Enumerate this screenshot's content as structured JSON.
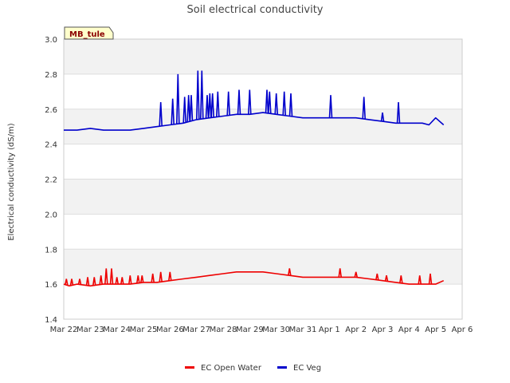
{
  "chart_data": {
    "type": "line",
    "title": "Soil electrical conductivity",
    "ylabel": "Electrical conductivity (dS/m)",
    "xlabel": "",
    "tag_label": "MB_tule",
    "ylim": [
      1.4,
      3.0
    ],
    "yticks": [
      "1.4",
      "1.6",
      "1.8",
      "2.0",
      "2.2",
      "2.4",
      "2.6",
      "2.8",
      "3.0"
    ],
    "xlim": [
      "Mar 22",
      "Apr 6"
    ],
    "xticks": [
      "Mar 22",
      "Mar 23",
      "Mar 24",
      "Mar 25",
      "Mar 26",
      "Mar 27",
      "Mar 28",
      "Mar 29",
      "Mar 30",
      "Mar 31",
      "Apr 1",
      "Apr 2",
      "Apr 3",
      "Apr 4",
      "Apr 5",
      "Apr 6"
    ],
    "x_unit": "date (Mar 22 + days)",
    "grid": true,
    "alternating_bands": true,
    "legend_placement": "bottom-center",
    "series": [
      {
        "name": "EC Open Water",
        "color": "#ee0000",
        "x": [
          0.0,
          0.2,
          0.5,
          1.0,
          1.5,
          2.0,
          2.5,
          3.0,
          3.5,
          4.0,
          4.5,
          5.0,
          5.5,
          6.0,
          6.5,
          7.0,
          7.5,
          8.0,
          8.5,
          9.0,
          9.5,
          10.0,
          10.5,
          11.0,
          11.5,
          12.0,
          12.5,
          13.0,
          13.5,
          14.0,
          14.3
        ],
        "y": [
          1.6,
          1.59,
          1.6,
          1.59,
          1.6,
          1.6,
          1.6,
          1.61,
          1.61,
          1.62,
          1.63,
          1.64,
          1.65,
          1.66,
          1.67,
          1.67,
          1.67,
          1.66,
          1.65,
          1.64,
          1.64,
          1.64,
          1.64,
          1.64,
          1.63,
          1.62,
          1.61,
          1.6,
          1.6,
          1.6,
          1.62
        ],
        "spikes": [
          [
            0.1,
            1.63
          ],
          [
            0.3,
            1.63
          ],
          [
            0.6,
            1.63
          ],
          [
            0.9,
            1.64
          ],
          [
            1.15,
            1.64
          ],
          [
            1.4,
            1.65
          ],
          [
            1.6,
            1.69
          ],
          [
            1.8,
            1.69
          ],
          [
            2.0,
            1.64
          ],
          [
            2.2,
            1.64
          ],
          [
            2.5,
            1.65
          ],
          [
            2.8,
            1.65
          ],
          [
            2.95,
            1.65
          ],
          [
            3.35,
            1.66
          ],
          [
            3.65,
            1.67
          ],
          [
            4.0,
            1.67
          ],
          [
            8.5,
            1.69
          ],
          [
            10.4,
            1.69
          ],
          [
            11.0,
            1.67
          ],
          [
            11.8,
            1.66
          ],
          [
            12.15,
            1.65
          ],
          [
            12.7,
            1.65
          ],
          [
            13.4,
            1.65
          ],
          [
            13.8,
            1.66
          ]
        ]
      },
      {
        "name": "EC Veg",
        "color": "#0000cc",
        "x": [
          0.0,
          0.5,
          1.0,
          1.5,
          2.0,
          2.5,
          3.0,
          3.5,
          4.0,
          4.5,
          5.0,
          5.5,
          6.0,
          6.5,
          7.0,
          7.5,
          8.0,
          8.5,
          9.0,
          9.5,
          10.0,
          10.5,
          11.0,
          11.5,
          12.0,
          12.5,
          13.0,
          13.5,
          13.75,
          14.0,
          14.3
        ],
        "y": [
          2.48,
          2.48,
          2.49,
          2.48,
          2.48,
          2.48,
          2.49,
          2.5,
          2.51,
          2.52,
          2.54,
          2.55,
          2.56,
          2.57,
          2.57,
          2.58,
          2.57,
          2.56,
          2.55,
          2.55,
          2.55,
          2.55,
          2.55,
          2.54,
          2.53,
          2.52,
          2.52,
          2.52,
          2.51,
          2.55,
          2.51
        ],
        "spikes": [
          [
            3.65,
            2.64
          ],
          [
            4.1,
            2.66
          ],
          [
            4.3,
            2.8
          ],
          [
            4.55,
            2.67
          ],
          [
            4.7,
            2.68
          ],
          [
            4.8,
            2.68
          ],
          [
            5.05,
            2.82
          ],
          [
            5.2,
            2.82
          ],
          [
            5.4,
            2.68
          ],
          [
            5.5,
            2.69
          ],
          [
            5.6,
            2.69
          ],
          [
            5.8,
            2.7
          ],
          [
            6.2,
            2.7
          ],
          [
            6.6,
            2.71
          ],
          [
            7.0,
            2.71
          ],
          [
            7.65,
            2.71
          ],
          [
            7.75,
            2.7
          ],
          [
            8.0,
            2.69
          ],
          [
            8.3,
            2.7
          ],
          [
            8.55,
            2.69
          ],
          [
            10.05,
            2.68
          ],
          [
            11.3,
            2.67
          ],
          [
            12.0,
            2.58
          ],
          [
            12.6,
            2.64
          ]
        ]
      }
    ]
  }
}
